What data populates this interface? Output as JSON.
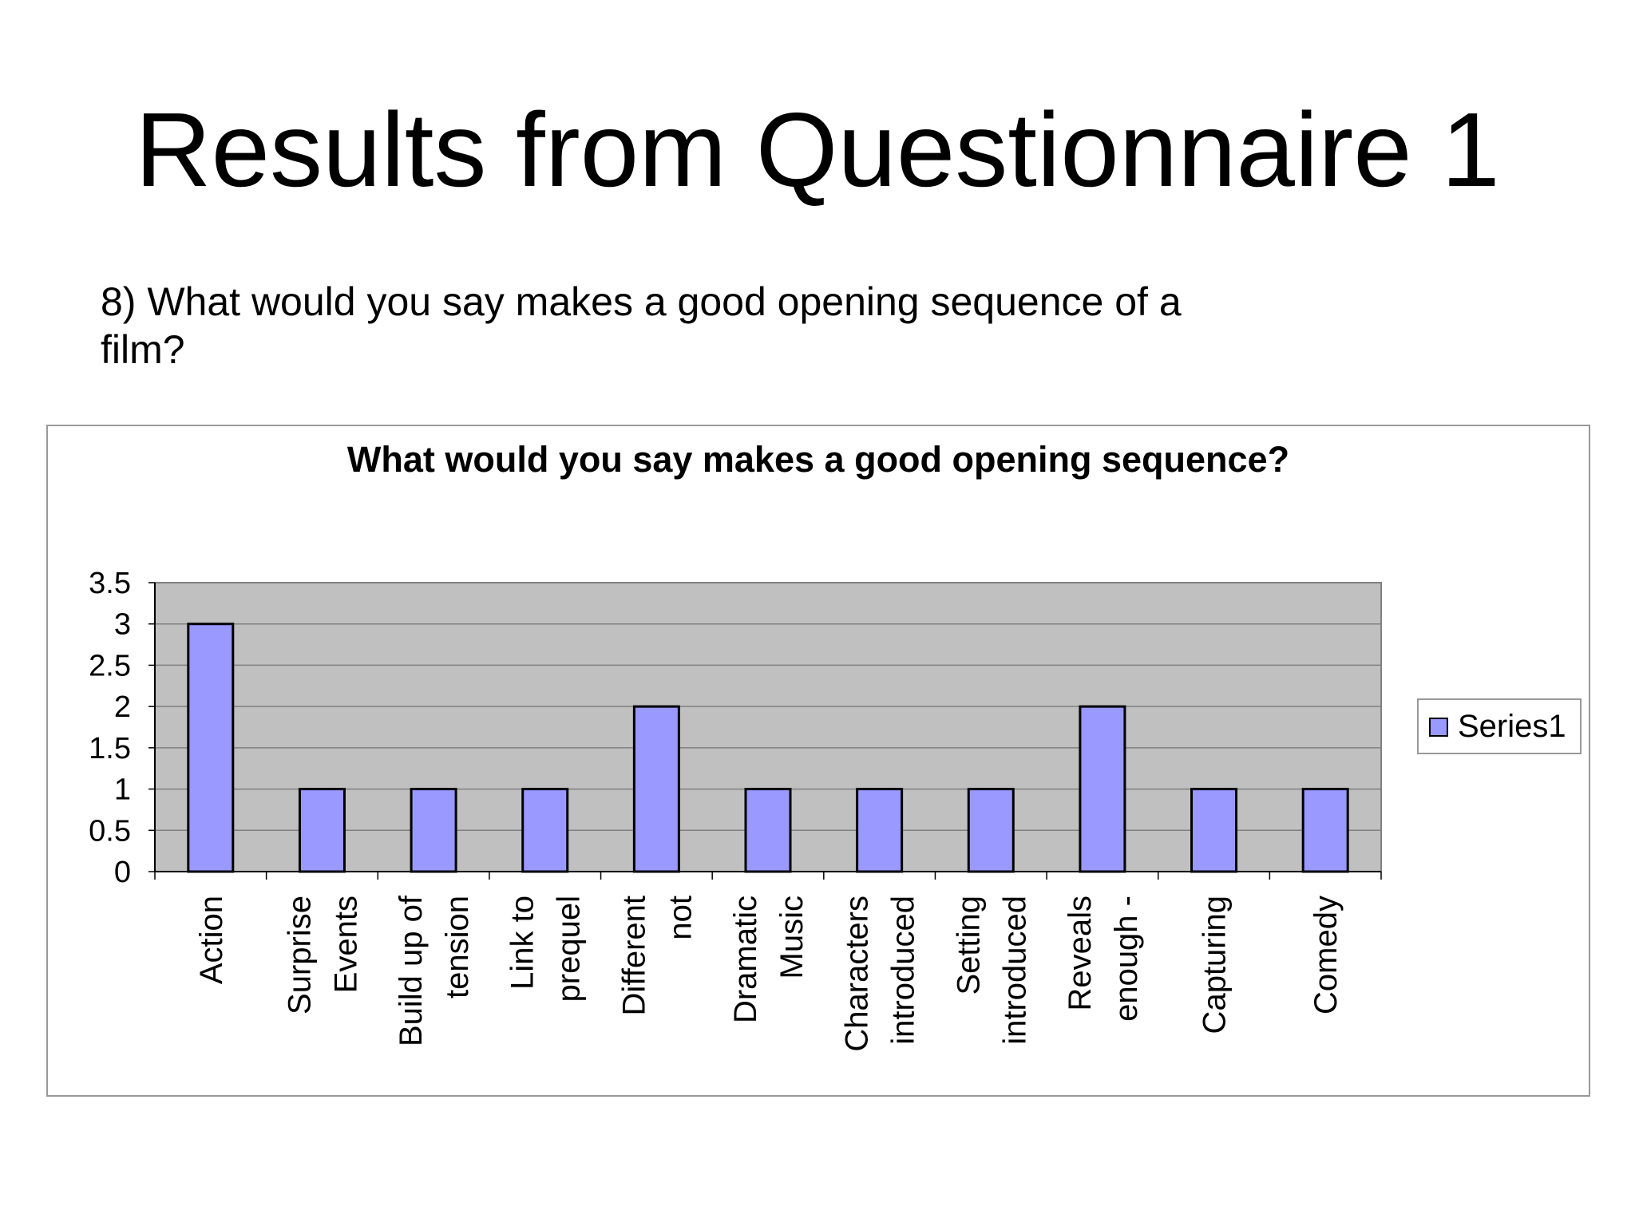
{
  "slide": {
    "title": "Results from Questionnaire 1",
    "question_line1": "8) What would you say makes a good opening sequence of a",
    "question_line2": "film?"
  },
  "chart_data": {
    "type": "bar",
    "title": "What would you say makes a good opening sequence?",
    "categories": [
      [
        "Action"
      ],
      [
        "Surprise",
        "Events"
      ],
      [
        "Build up of",
        "tension"
      ],
      [
        "Link to",
        "prequel"
      ],
      [
        "Different",
        "not"
      ],
      [
        "Dramatic",
        "Music"
      ],
      [
        "Characters",
        "introduced"
      ],
      [
        "Setting",
        "introduced"
      ],
      [
        "Reveals",
        "enough -"
      ],
      [
        "Capturing"
      ],
      [
        "Comedy"
      ]
    ],
    "series": [
      {
        "name": "Series1",
        "values": [
          3,
          1,
          1,
          1,
          2,
          1,
          1,
          1,
          2,
          1,
          1
        ]
      }
    ],
    "yticks": [
      "0",
      "0.5",
      "1",
      "1.5",
      "2",
      "2.5",
      "3",
      "3.5"
    ],
    "ylim": [
      0,
      3.5
    ],
    "grid": true,
    "legend_position": "right",
    "colors": {
      "bar": "#9999ff",
      "plot_bg": "#c0c0c0",
      "gridline": "#808080",
      "bar_edge": "#000000"
    }
  }
}
